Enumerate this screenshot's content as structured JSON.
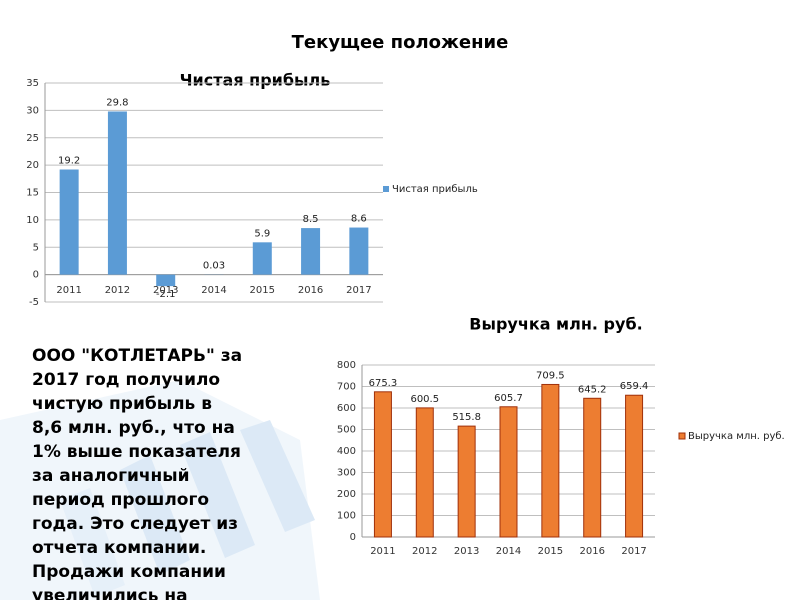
{
  "title": "Текущее положение",
  "text": [
    "ООО \"КОТЛЕТАРЬ\" за",
    "2017 год получило",
    "чистую прибыль в",
    "8,6 млн. руб., что на",
    "1% выше показателя",
    "за аналогичный",
    "период прошлого",
    "года. Это следует из",
    "отчета компании.",
    "Продажи компании",
    "увеличились на"
  ],
  "chart_data": [
    {
      "type": "bar",
      "title": "Чистая прибыль",
      "categories": [
        "2011",
        "2012",
        "2013",
        "2014",
        "2015",
        "2016",
        "2017"
      ],
      "series": [
        {
          "name": "Чистая прибыль",
          "color": "#5b9bd5",
          "values": [
            19.2,
            29.8,
            -2.1,
            0.03,
            5.9,
            8.5,
            8.6
          ]
        }
      ],
      "ylim": [
        -5,
        35
      ],
      "yticks": [
        -5,
        0,
        5,
        10,
        15,
        20,
        25,
        30,
        35
      ],
      "grid": true,
      "legend": "right"
    },
    {
      "type": "bar",
      "title": "Выручка млн. руб.",
      "categories": [
        "2011",
        "2012",
        "2013",
        "2014",
        "2015",
        "2016",
        "2017"
      ],
      "series": [
        {
          "name": "Выручка млн. руб.",
          "color": "#ed7d31",
          "values": [
            675.3,
            600.5,
            515.8,
            605.7,
            709.5,
            645.2,
            659.4
          ]
        }
      ],
      "ylim": [
        0,
        800
      ],
      "yticks": [
        0,
        100,
        200,
        300,
        400,
        500,
        600,
        700,
        800
      ],
      "grid": true,
      "legend": "right"
    }
  ]
}
